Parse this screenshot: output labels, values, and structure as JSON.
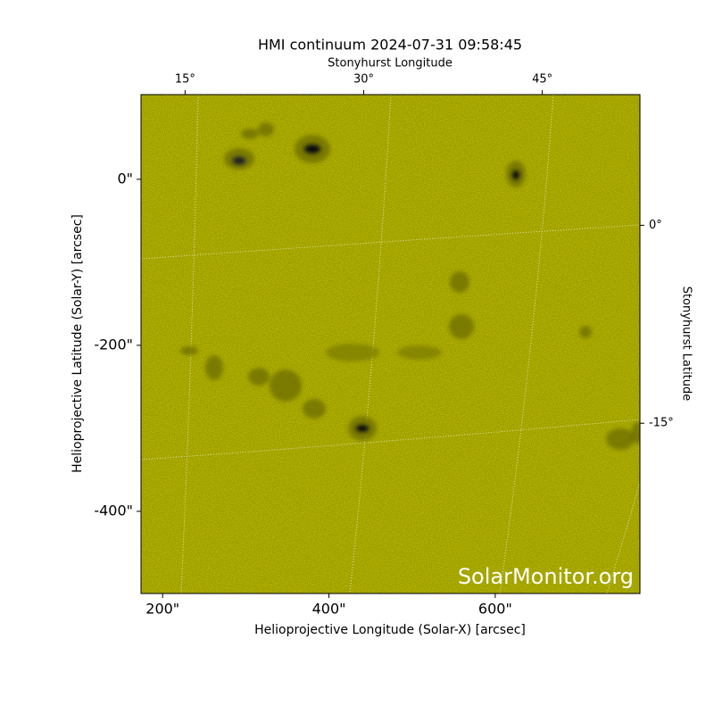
{
  "chart_data": {
    "type": "image",
    "title": "HMI continuum 2024-07-31 09:58:45",
    "xlabel": "Helioprojective Longitude (Solar-X) [arcsec]",
    "ylabel": "Helioprojective Latitude (Solar-Y) [arcsec]",
    "x2label": "Stonyhurst Longitude",
    "y2label": "Stonyhurst Latitude",
    "watermark": "SolarMonitor.org",
    "color": "#c9c900",
    "xlim": [
      174,
      774
    ],
    "ylim": [
      -499,
      102
    ],
    "xticks": [
      {
        "value": 200,
        "label": "200\""
      },
      {
        "value": 400,
        "label": "400\""
      },
      {
        "value": 600,
        "label": "600\""
      }
    ],
    "yticks": [
      {
        "value": 0,
        "label": "0\""
      },
      {
        "value": -200,
        "label": "-200\""
      },
      {
        "value": -400,
        "label": "-400\""
      }
    ],
    "x2lim": [
      11.3,
      53.2
    ],
    "x2ticks": [
      {
        "value": 15,
        "label": "15°"
      },
      {
        "value": 30,
        "label": "30°"
      },
      {
        "value": 45,
        "label": "45°"
      }
    ],
    "y2lim": [
      -27.9,
      9.9
    ],
    "y2ticks": [
      {
        "value": 0,
        "label": "0°"
      },
      {
        "value": -15,
        "label": "-15°"
      }
    ]
  }
}
